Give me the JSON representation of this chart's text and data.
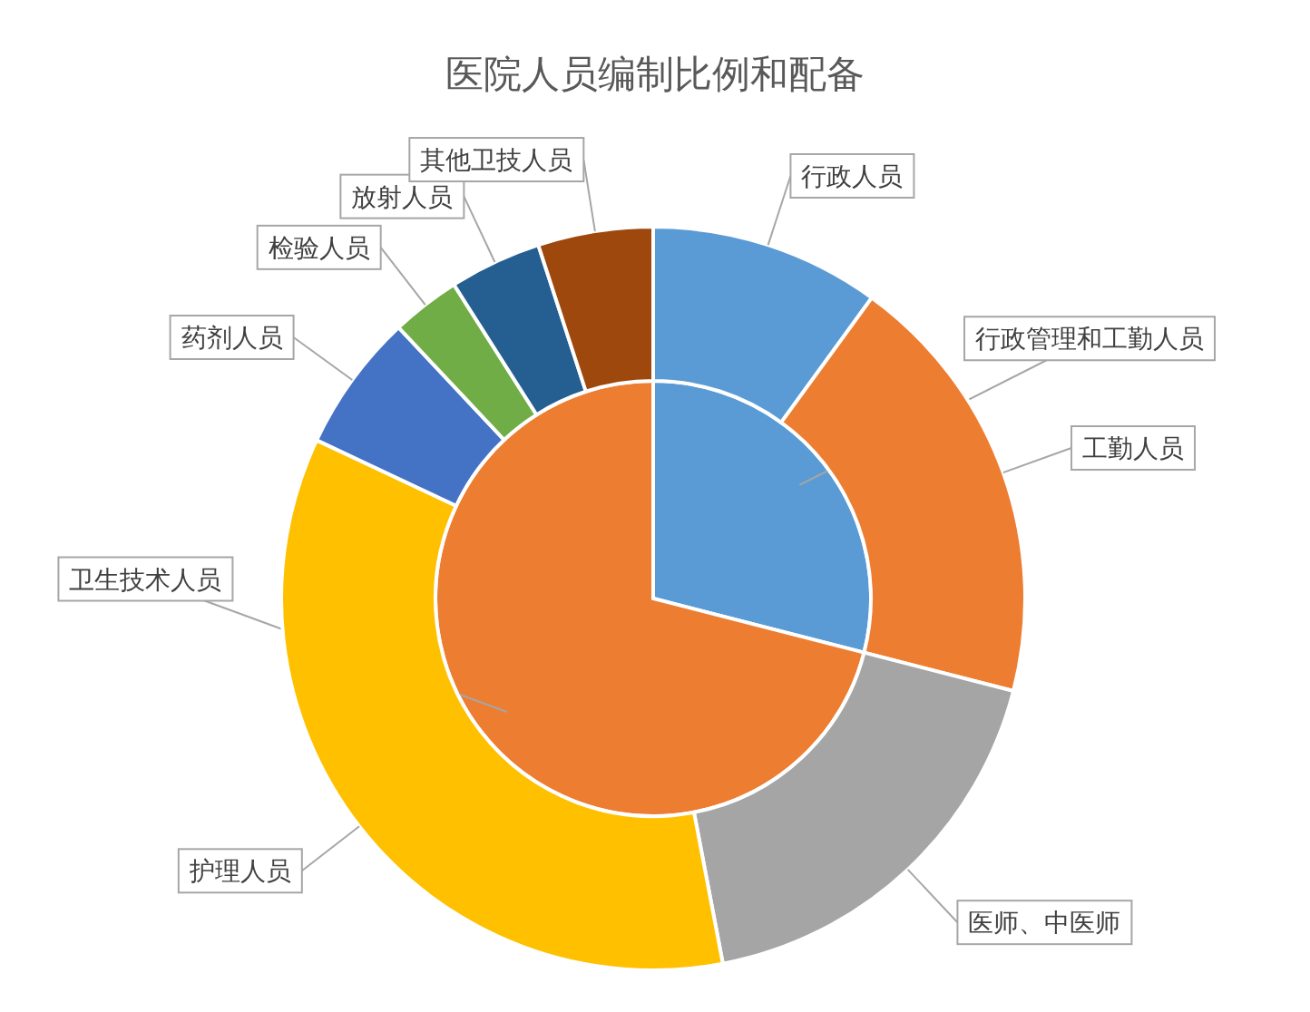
{
  "chart_data": [
    {
      "type": "pie",
      "title": "医院人员编制比例和配备",
      "categories": [
        "行政管理和工勤人员",
        "卫生技术人员"
      ],
      "values": [
        29,
        71
      ],
      "colors": [
        "#5b9bd5",
        "#ed7d31"
      ]
    },
    {
      "type": "donut",
      "categories": [
        "行政人员",
        "工勤人员",
        "医师、中医师",
        "护理人员",
        "药剂人员",
        "检验人员",
        "放射人员",
        "其他卫技人员"
      ],
      "values": [
        10,
        19,
        18,
        35,
        6,
        3,
        4,
        5
      ],
      "colors": [
        "#5b9bd5",
        "#ed7d31",
        "#a5a5a5",
        "#ffc000",
        "#4472c4",
        "#70ad47",
        "#255e91",
        "#9e480e"
      ]
    }
  ]
}
